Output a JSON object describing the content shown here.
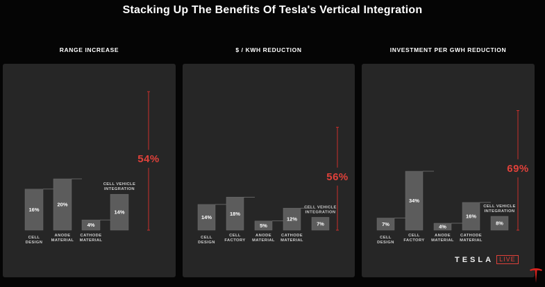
{
  "title": "Stacking Up The Benefits Of Tesla's Vertical Integration",
  "brand": {
    "wordmark": "TESLA",
    "badge": "LIVE"
  },
  "colors": {
    "background": "#050505",
    "panel": "#262626",
    "bar": "#5c5c5c",
    "accent": "#e0413a"
  },
  "chart_data": [
    {
      "type": "waterfall",
      "title": "RANGE INCREASE",
      "categories": [
        "CELL DESIGN",
        "ANODE MATERIAL",
        "CATHODE MATERIAL",
        "CELL VEHICLE INTEGRATION"
      ],
      "values": [
        16,
        20,
        4,
        14
      ],
      "value_labels": [
        "16%",
        "20%",
        "4%",
        "14%"
      ],
      "total": 54,
      "total_label": "54%"
    },
    {
      "type": "waterfall",
      "title": "$ / KWH REDUCTION",
      "categories": [
        "CELL DESIGN",
        "CELL FACTORY",
        "ANODE MATERIAL",
        "CATHODE MATERIAL",
        "CELL VEHICLE INTEGRATION"
      ],
      "values": [
        14,
        18,
        5,
        12,
        7
      ],
      "value_labels": [
        "14%",
        "18%",
        "5%",
        "12%",
        "7%"
      ],
      "total": 56,
      "total_label": "56%"
    },
    {
      "type": "waterfall",
      "title": "INVESTMENT PER GWH REDUCTION",
      "categories": [
        "CELL DESIGN",
        "CELL FACTORY",
        "ANODE MATERIAL",
        "CATHODE MATERIAL",
        "CELL VEHICLE INTEGRATION"
      ],
      "values": [
        7,
        34,
        4,
        16,
        8
      ],
      "value_labels": [
        "7%",
        "34%",
        "4%",
        "16%",
        "8%"
      ],
      "total": 69,
      "total_label": "69%"
    }
  ]
}
